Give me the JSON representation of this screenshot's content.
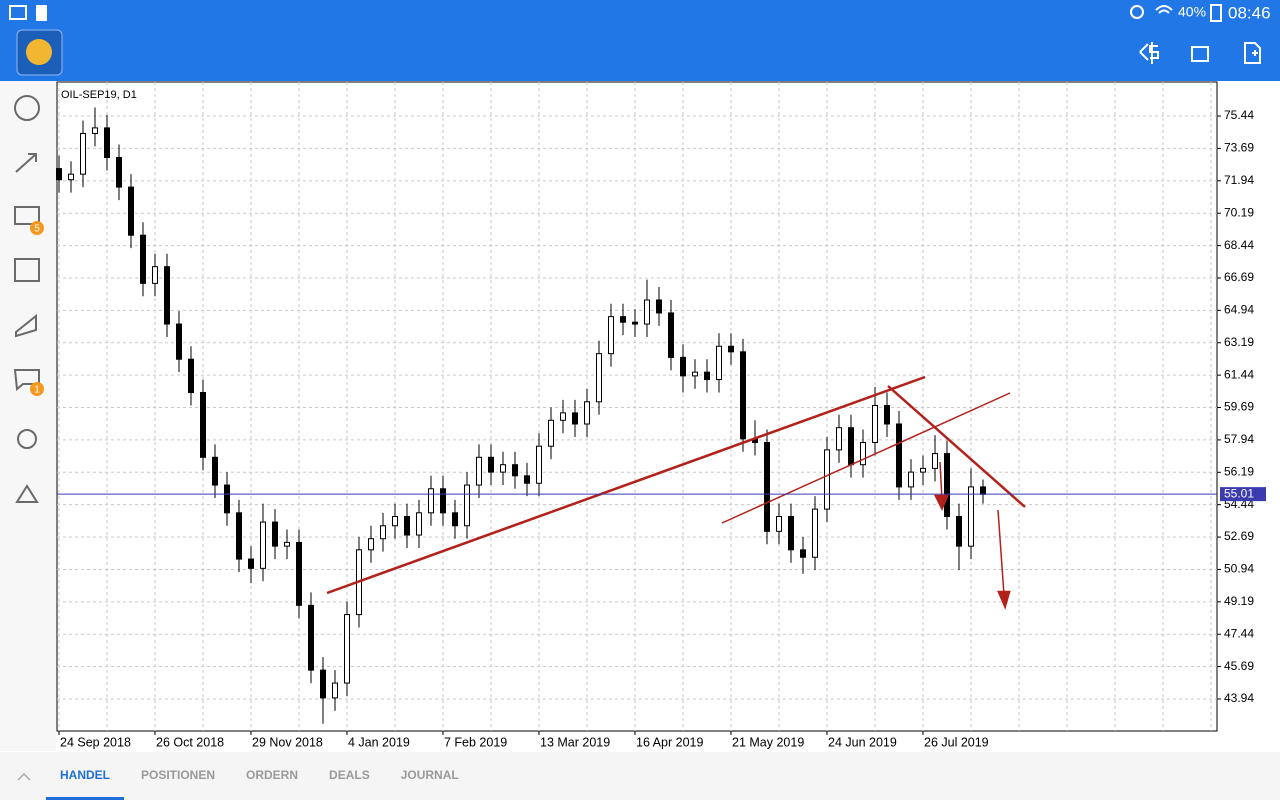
{
  "status_bar": {
    "battery": "40%",
    "time": "08:46"
  },
  "sidebar": {
    "badges": [
      "5",
      "1"
    ]
  },
  "chart_data": {
    "type": "candlestick",
    "title": "OIL-SEP19, D1",
    "categories": [
      "24 Sep 2018",
      null,
      null,
      null,
      null,
      null,
      null,
      null,
      "26 Oct 2018",
      null,
      null,
      null,
      null,
      null,
      null,
      null,
      "29 Nov 2018",
      null,
      null,
      null,
      null,
      null,
      null,
      null,
      "4 Jan 2019",
      null,
      null,
      null,
      null,
      null,
      null,
      null,
      "7 Feb 2019",
      null,
      null,
      null,
      null,
      null,
      null,
      null,
      "13 Mar 2019",
      null,
      null,
      null,
      null,
      null,
      null,
      null,
      "16 Apr 2019",
      null,
      null,
      null,
      null,
      null,
      null,
      null,
      "21 May 2019",
      null,
      null,
      null,
      null,
      null,
      null,
      null,
      "24 Jun 2019",
      null,
      null,
      null,
      null,
      null,
      null,
      null,
      "26 Jul 2019",
      null,
      null,
      null,
      null,
      null
    ],
    "open": [
      72.6,
      72.0,
      72.3,
      74.5,
      74.8,
      73.2,
      71.6,
      69.0,
      66.4,
      67.3,
      64.2,
      62.3,
      60.5,
      57.0,
      55.5,
      54.0,
      51.5,
      51.0,
      53.5,
      52.2,
      52.4,
      49.0,
      45.5,
      44.0,
      44.8,
      48.5,
      52.0,
      52.6,
      53.3,
      53.8,
      52.8,
      54.0,
      55.3,
      54.0,
      53.3,
      55.5,
      57.0,
      56.2,
      56.6,
      56.0,
      55.6,
      57.6,
      59.0,
      59.4,
      58.8,
      60.0,
      62.6,
      64.6,
      64.3,
      64.2,
      65.5,
      64.8,
      62.4,
      61.4,
      61.6,
      61.2,
      63.0,
      62.7,
      58.0,
      57.8,
      53.0,
      53.8,
      52.0,
      51.6,
      54.2,
      57.4,
      58.6,
      56.6,
      57.8,
      59.8,
      58.8,
      55.4,
      56.2,
      56.4,
      57.2,
      53.8,
      52.2,
      55.4
    ],
    "high": [
      73.3,
      73.0,
      75.2,
      75.9,
      75.5,
      73.9,
      72.3,
      69.7,
      68.0,
      68.0,
      64.9,
      63.0,
      61.2,
      57.7,
      56.2,
      54.7,
      52.2,
      54.5,
      54.2,
      53.1,
      53.1,
      49.7,
      46.2,
      45.5,
      49.2,
      52.7,
      53.3,
      54.0,
      54.5,
      54.5,
      54.7,
      56.0,
      56.0,
      54.7,
      56.2,
      57.7,
      57.7,
      57.3,
      57.3,
      56.7,
      58.3,
      59.7,
      60.1,
      60.1,
      60.7,
      63.3,
      65.3,
      65.3,
      65.0,
      66.6,
      66.2,
      65.5,
      63.1,
      62.3,
      62.3,
      63.7,
      63.7,
      63.4,
      59.0,
      58.5,
      54.5,
      54.5,
      52.7,
      54.9,
      58.1,
      59.3,
      59.3,
      58.5,
      60.8,
      60.5,
      59.5,
      56.9,
      57.1,
      58.2,
      57.9,
      54.5,
      56.4,
      55.8
    ],
    "low": [
      71.3,
      71.3,
      71.6,
      73.8,
      72.5,
      70.9,
      68.3,
      65.7,
      65.7,
      63.5,
      61.6,
      59.8,
      56.3,
      54.8,
      53.3,
      50.8,
      50.2,
      50.3,
      51.5,
      51.5,
      48.3,
      44.8,
      42.6,
      43.3,
      44.1,
      47.8,
      51.3,
      51.9,
      52.6,
      52.1,
      52.1,
      53.3,
      53.3,
      52.6,
      52.6,
      54.8,
      55.5,
      55.5,
      55.3,
      54.9,
      54.9,
      56.9,
      58.3,
      58.1,
      58.1,
      59.3,
      61.9,
      63.6,
      63.5,
      63.5,
      64.1,
      61.7,
      60.5,
      60.7,
      60.5,
      60.5,
      62.0,
      57.3,
      57.1,
      52.3,
      52.3,
      51.3,
      50.7,
      50.9,
      53.5,
      56.7,
      55.9,
      55.9,
      57.1,
      58.1,
      54.7,
      54.7,
      55.5,
      55.7,
      53.1,
      50.9,
      51.5,
      54.5
    ],
    "close": [
      72.0,
      72.3,
      74.5,
      74.8,
      73.2,
      71.6,
      69.0,
      66.4,
      67.3,
      64.2,
      62.3,
      60.5,
      57.0,
      55.5,
      54.0,
      51.5,
      51.0,
      53.5,
      52.2,
      52.4,
      49.0,
      45.5,
      44.0,
      44.8,
      48.5,
      52.0,
      52.6,
      53.3,
      53.8,
      52.8,
      54.0,
      55.3,
      54.0,
      53.3,
      55.5,
      57.0,
      56.2,
      56.6,
      56.0,
      55.6,
      57.6,
      59.0,
      59.4,
      58.8,
      60.0,
      62.6,
      64.6,
      64.3,
      64.2,
      65.5,
      64.8,
      62.4,
      61.4,
      61.6,
      61.2,
      63.0,
      62.7,
      58.0,
      57.8,
      53.0,
      53.8,
      52.0,
      51.6,
      54.2,
      57.4,
      58.6,
      56.6,
      57.8,
      59.8,
      58.8,
      55.4,
      56.2,
      56.4,
      57.2,
      53.8,
      52.2,
      55.4,
      55.0
    ],
    "ylim": [
      42.21,
      77.28
    ],
    "yticks": [
      43.94,
      45.69,
      47.44,
      49.19,
      50.94,
      52.69,
      54.44,
      56.19,
      57.94,
      59.69,
      61.44,
      63.19,
      64.94,
      66.69,
      68.44,
      70.19,
      71.94,
      73.69,
      75.44
    ],
    "last_price": 55.01,
    "grid": true,
    "up_color": "#ffffff",
    "down_color": "#000000",
    "last_price_color": "#3b3bb0"
  },
  "tabs": [
    "HANDEL",
    "POSITIONEN",
    "ORDERN",
    "DEALS",
    "JOURNAL"
  ],
  "active_tab": 0
}
